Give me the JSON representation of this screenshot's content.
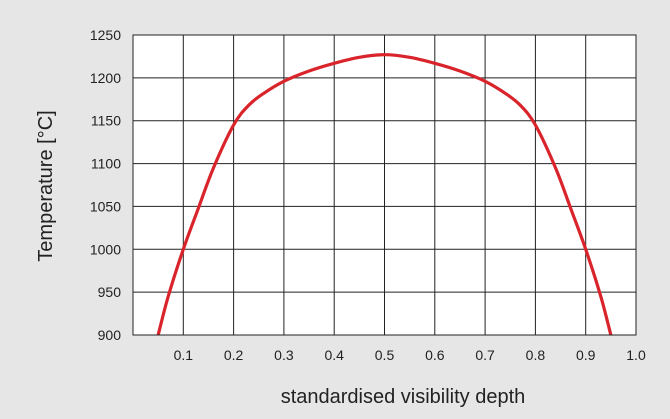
{
  "chart_data": {
    "type": "line",
    "title": "",
    "xlabel": "standardised visibility depth",
    "ylabel": "Temperature [°C]",
    "xlim": [
      0,
      1.0
    ],
    "ylim": [
      900,
      1250
    ],
    "grid": true,
    "x_ticks": [
      "0.1",
      "0.2",
      "0.3",
      "0.4",
      "0.5",
      "0.6",
      "0.7",
      "0.8",
      "0.9",
      "1.0"
    ],
    "y_ticks": [
      "900",
      "950",
      "1000",
      "1050",
      "1100",
      "1150",
      "1200",
      "1250"
    ],
    "series": [
      {
        "color": "#d9242b",
        "x": [
          0.05,
          0.07,
          0.1,
          0.13,
          0.16,
          0.2,
          0.23,
          0.26,
          0.3,
          0.35,
          0.4,
          0.45,
          0.5,
          0.55,
          0.6,
          0.65,
          0.7,
          0.74,
          0.77,
          0.8,
          0.84,
          0.87,
          0.9,
          0.93,
          0.95
        ],
        "y": [
          900,
          945,
          1000,
          1048,
          1095,
          1145,
          1168,
          1182,
          1196,
          1208,
          1217,
          1224,
          1227,
          1224,
          1217,
          1208,
          1196,
          1182,
          1168,
          1145,
          1095,
          1048,
          1000,
          945,
          900
        ]
      }
    ]
  }
}
